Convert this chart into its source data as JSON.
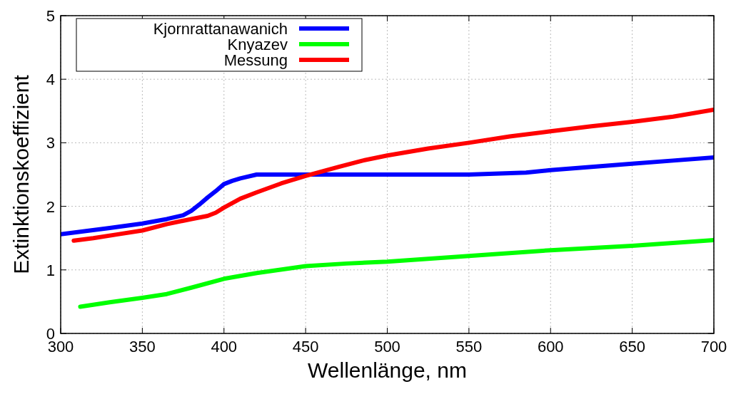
{
  "chart_data": {
    "type": "line",
    "xlabel": "Wellenlänge, nm",
    "ylabel": "Extinktionskoeffizient",
    "xlim": [
      300,
      700
    ],
    "ylim": [
      0,
      5
    ],
    "xticks": [
      300,
      350,
      400,
      450,
      500,
      550,
      600,
      650,
      700
    ],
    "yticks": [
      0,
      1,
      2,
      3,
      4,
      5
    ],
    "grid": true,
    "legend": "top left",
    "line_style": "solid",
    "marker": "none",
    "series": [
      {
        "name": "Kjornrattanawanich",
        "color": "#0000ff",
        "x": [
          300,
          330,
          350,
          365,
          375,
          380,
          385,
          390,
          395,
          400,
          405,
          410,
          420,
          450,
          500,
          550,
          585,
          600,
          625,
          650,
          675,
          700
        ],
        "values": [
          1.56,
          1.66,
          1.73,
          1.8,
          1.86,
          1.93,
          2.03,
          2.14,
          2.24,
          2.35,
          2.4,
          2.44,
          2.5,
          2.5,
          2.5,
          2.5,
          2.53,
          2.57,
          2.62,
          2.67,
          2.72,
          2.77
        ]
      },
      {
        "name": "Knyazev",
        "color": "#00ff00",
        "x": [
          312,
          330,
          350,
          365,
          380,
          400,
          420,
          450,
          475,
          500,
          550,
          600,
          650,
          700
        ],
        "values": [
          0.42,
          0.49,
          0.56,
          0.62,
          0.72,
          0.86,
          0.95,
          1.06,
          1.1,
          1.13,
          1.22,
          1.31,
          1.38,
          1.47
        ]
      },
      {
        "name": "Messung",
        "color": "#ff0000",
        "x": [
          308,
          320,
          335,
          350,
          365,
          380,
          390,
          395,
          400,
          410,
          420,
          435,
          450,
          470,
          485,
          500,
          525,
          550,
          575,
          600,
          625,
          650,
          675,
          700
        ],
        "values": [
          1.46,
          1.5,
          1.56,
          1.62,
          1.72,
          1.8,
          1.85,
          1.9,
          1.98,
          2.12,
          2.22,
          2.36,
          2.48,
          2.62,
          2.72,
          2.8,
          2.91,
          3.0,
          3.1,
          3.18,
          3.26,
          3.33,
          3.41,
          3.52
        ]
      }
    ]
  }
}
